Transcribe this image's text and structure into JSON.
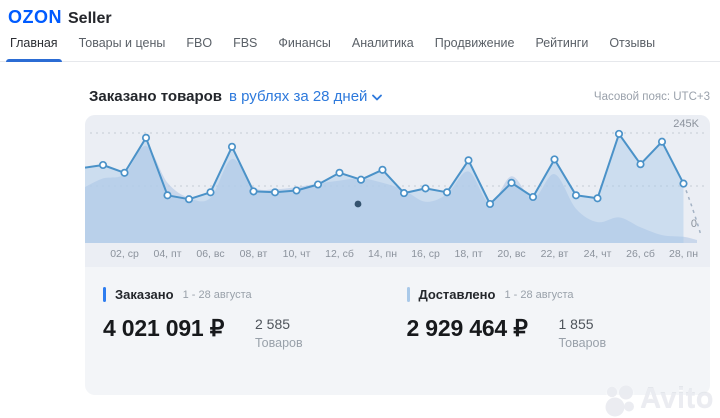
{
  "header": {
    "brand": "OZON",
    "brand_suffix": "Seller"
  },
  "nav": {
    "tabs": [
      {
        "label": "Главная",
        "slug": "glavnaya",
        "active": true
      },
      {
        "label": "Товары и цены",
        "slug": "tovary-i-tseny",
        "active": false
      },
      {
        "label": "FBO",
        "slug": "fbo",
        "active": false
      },
      {
        "label": "FBS",
        "slug": "fbs",
        "active": false
      },
      {
        "label": "Финансы",
        "slug": "finansy",
        "active": false
      },
      {
        "label": "Аналитика",
        "slug": "analitika",
        "active": false
      },
      {
        "label": "Продвижение",
        "slug": "prodvizhenie",
        "active": false
      },
      {
        "label": "Рейтинги",
        "slug": "reytingi",
        "active": false
      },
      {
        "label": "Отзывы",
        "slug": "otzyvy",
        "active": false
      }
    ]
  },
  "toolbar": {
    "title": "Заказано товаров",
    "range_selector": "в рублях за 28 дней",
    "timezone": "Часовой пояс: UTC+3"
  },
  "chart_data": {
    "type": "line",
    "title": "Заказано товаров",
    "subtitle": "в рублях за 28 дней",
    "unit": "rubles, thousands (K)",
    "ylim_k": [
      0,
      245
    ],
    "gridline_values_k": [
      245,
      122.5
    ],
    "y_axis_labels": {
      "max": "245K",
      "min": "0"
    },
    "x_tick_labels": [
      "02, ср",
      "04, пт",
      "06, вс",
      "08, вт",
      "10, чт",
      "12, сб",
      "14, пн",
      "16, ср",
      "18, пт",
      "20, вс",
      "22, вт",
      "24, чт",
      "26, сб",
      "28, пн"
    ],
    "legend_position": "none",
    "grid": "dashed-horizontal",
    "series": [
      {
        "name": "current-period",
        "style": "straight-line-with-markers",
        "edge_start_k": 165,
        "values_k": [
          171,
          153,
          234,
          101,
          92,
          108,
          213,
          110,
          108,
          112,
          126,
          153,
          137,
          160,
          106,
          117,
          108,
          182,
          81,
          130,
          97,
          184,
          101,
          94,
          243,
          173,
          225,
          128
        ],
        "trailing_dashed_projection_to_k": 8
      },
      {
        "name": "previous-period",
        "style": "smooth-area-no-markers",
        "edge_start_k": 120,
        "values_k": [
          140,
          150,
          215,
          130,
          95,
          95,
          185,
          120,
          115,
          120,
          128,
          135,
          140,
          130,
          113,
          86,
          104,
          156,
          82,
          145,
          93,
          150,
          70,
          39,
          50,
          27,
          9,
          5
        ]
      }
    ]
  },
  "stats": {
    "left": {
      "label": "Заказано",
      "period": "1 - 28 августа",
      "value": "4 021 091 ₽",
      "count": "2 585",
      "count_label": "Товаров",
      "bar_color": "#2e7df0"
    },
    "right": {
      "label": "Доставлено",
      "period": "1 - 28 августа",
      "value": "2 929 464 ₽",
      "count": "1 855",
      "count_label": "Товаров",
      "bar_color": "#a9c9e9"
    }
  },
  "watermark": {
    "text": "Avito"
  },
  "colors": {
    "brand_blue": "#005bff",
    "link_blue": "#2d79dc",
    "active_tab_underline": "#2b6cd4",
    "chart_line": "#4b92c8",
    "chart_panel_bg": "#ebeef4",
    "card_bg": "#f3f5f8",
    "prev_area_fill": "rgba(190,207,232,0.75)",
    "line_area_fill": "rgba(167,199,233,0.45)"
  }
}
